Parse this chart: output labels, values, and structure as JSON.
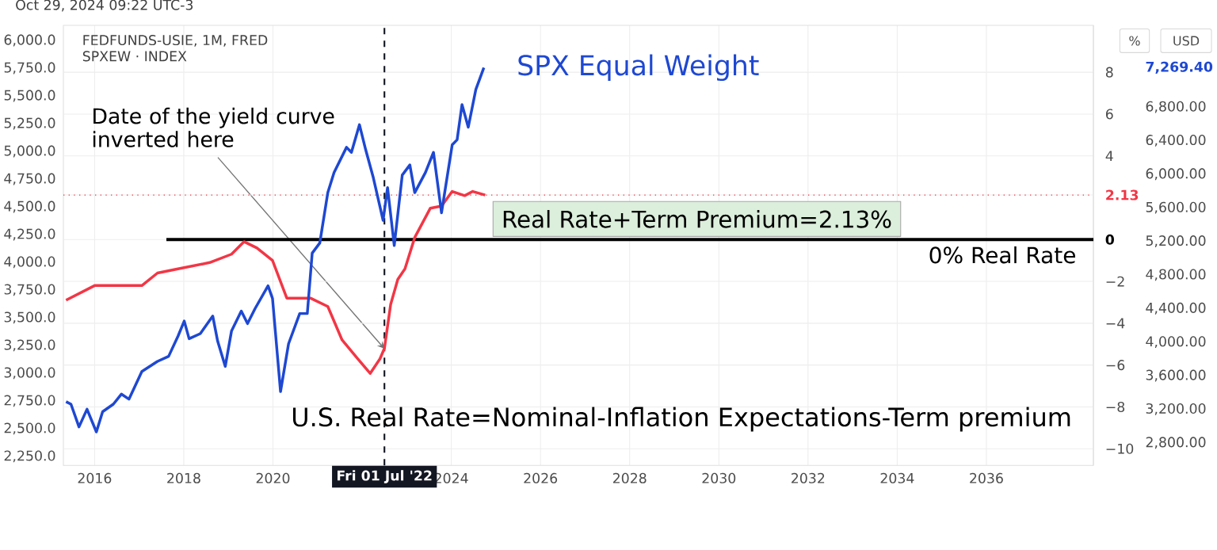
{
  "chart_data": {
    "type": "line",
    "xlim": [
      2015.3,
      2038.4
    ],
    "xticks": [
      2016,
      2018,
      2020,
      2024,
      2026,
      2028,
      2030,
      2032,
      2034,
      2036
    ],
    "ylim": [
      2168,
      6136
    ],
    "yticks": [
      {
        "value": 2250,
        "label": "2,250.0"
      },
      {
        "value": 2500,
        "label": "2,500.0"
      },
      {
        "value": 2750,
        "label": "2,750.0"
      },
      {
        "value": 3000,
        "label": "3,000.0"
      },
      {
        "value": 3250,
        "label": "3,250.0"
      },
      {
        "value": 3500,
        "label": "3,500.0"
      },
      {
        "value": 3750,
        "label": "3,750.0"
      },
      {
        "value": 4000,
        "label": "4,000.0"
      },
      {
        "value": 4250,
        "label": "4,250.0"
      },
      {
        "value": 4500,
        "label": "4,500.0"
      },
      {
        "value": 4750,
        "label": "4,750.0"
      },
      {
        "value": 5000,
        "label": "5,000.0"
      },
      {
        "value": 5250,
        "label": "5,250.0"
      },
      {
        "value": 5500,
        "label": "5,500.0"
      },
      {
        "value": 5750,
        "label": "5,750.0"
      },
      {
        "value": 6000,
        "label": "6,000.0"
      }
    ],
    "y2label": "%",
    "y2lim": [
      -10.8,
      10.24
    ],
    "y2ticks": [
      {
        "value": -10,
        "label": "−10"
      },
      {
        "value": -8,
        "label": "−8"
      },
      {
        "value": -6,
        "label": "−6"
      },
      {
        "value": -4,
        "label": "−4"
      },
      {
        "value": -2,
        "label": "−2"
      },
      0,
      {
        "value": 2.13,
        "label": "2.13"
      },
      4,
      6,
      8
    ],
    "y3label": "USD",
    "y3lim": [
      2530,
      7773
    ],
    "y3ticks": [
      {
        "value": 2800,
        "label": "2,800.00"
      },
      {
        "value": 3200,
        "label": "3,200.00"
      },
      {
        "value": 3600,
        "label": "3,600.00"
      },
      {
        "value": 4000,
        "label": "4,000.00"
      },
      {
        "value": 4400,
        "label": "4,400.00"
      },
      {
        "value": 4800,
        "label": "4,800.00"
      },
      {
        "value": 5200,
        "label": "5,200.00"
      },
      {
        "value": 5600,
        "label": "5,600.00"
      },
      {
        "value": 6000,
        "label": "6,000.00"
      },
      {
        "value": 6400,
        "label": "6,400.00"
      },
      {
        "value": 6800,
        "label": "6,800.00"
      },
      {
        "value": 7269.4,
        "label": "7,269.40"
      }
    ],
    "grid": true,
    "series": [
      {
        "color": "#f23645",
        "axis": "y2",
        "x": [
          2015.36,
          2016.0,
          2017.06,
          2017.41,
          2017.87,
          2018.58,
          2019.07,
          2019.35,
          2019.64,
          2019.99,
          2020.31,
          2020.49,
          2020.84,
          2021.23,
          2021.55,
          2021.9,
          2022.18,
          2022.4,
          2022.5,
          2022.64,
          2022.8,
          2022.96,
          2023.18,
          2023.53,
          2023.78,
          2024.02,
          2024.3,
          2024.48,
          2024.76
        ],
        "values": [
          -2.9,
          -2.2,
          -2.2,
          -1.6,
          -1.4,
          -1.1,
          -0.7,
          -0.1,
          -0.4,
          -1.0,
          -2.8,
          -2.8,
          -2.8,
          -3.2,
          -4.8,
          -5.7,
          -6.4,
          -5.7,
          -5.2,
          -3.1,
          -1.9,
          -1.4,
          0.1,
          1.5,
          1.6,
          2.3,
          2.1,
          2.3,
          2.13
        ]
      },
      {
        "name": "SPX Equal Weight",
        "color": "#1e48d2",
        "axis": "y3",
        "x": [
          2015.36,
          2015.47,
          2015.65,
          2015.83,
          2016.04,
          2016.18,
          2016.42,
          2016.6,
          2016.77,
          2017.06,
          2017.41,
          2017.66,
          2017.87,
          2018.01,
          2018.12,
          2018.37,
          2018.65,
          2018.76,
          2018.93,
          2019.07,
          2019.29,
          2019.43,
          2019.6,
          2019.89,
          2019.99,
          2020.17,
          2020.35,
          2020.6,
          2020.77,
          2020.88,
          2021.05,
          2021.23,
          2021.37,
          2021.65,
          2021.76,
          2021.94,
          2022.08,
          2022.25,
          2022.47,
          2022.57,
          2022.72,
          2022.9,
          2023.07,
          2023.18,
          2023.42,
          2023.6,
          2023.78,
          2024.02,
          2024.13,
          2024.24,
          2024.38,
          2024.55,
          2024.73
        ],
        "values": [
          3290,
          3260,
          2990,
          3200,
          2930,
          3170,
          3260,
          3380,
          3320,
          3650,
          3770,
          3830,
          4070,
          4250,
          4040,
          4100,
          4310,
          4010,
          3710,
          4130,
          4370,
          4220,
          4400,
          4670,
          4520,
          3410,
          3980,
          4340,
          4340,
          5060,
          5180,
          5780,
          6020,
          6320,
          6260,
          6590,
          6290,
          5960,
          5450,
          5840,
          5150,
          5990,
          6110,
          5780,
          6020,
          6260,
          5540,
          6350,
          6410,
          6830,
          6560,
          7010,
          7269.4
        ]
      }
    ],
    "ref_lines": [
      {
        "axis": "x",
        "value": 2022.5,
        "label": "Fri 01 Jul '22",
        "color": "#131722",
        "line_style": "dashed"
      },
      {
        "axis": "y2",
        "value": 0,
        "label": "0% Real Rate",
        "color": "#000000",
        "line_style": "solid"
      },
      {
        "axis": "y2",
        "value": 2.13,
        "color": "#f23645",
        "line_style": "dotted"
      }
    ],
    "annotations": [
      "Oct 29, 2024 09:22 UTC-3",
      "FEDFUNDS-USIE, 1M, FRED",
      "SPXEW · INDEX",
      {
        "text": "Date of the yield curve inverted here",
        "x": 2022.5,
        "y": 3220
      },
      "Real Rate+Term Premium=2.13%",
      "U.S. Real Rate=Nominal-Inflation Expectations-Term premium"
    ]
  }
}
